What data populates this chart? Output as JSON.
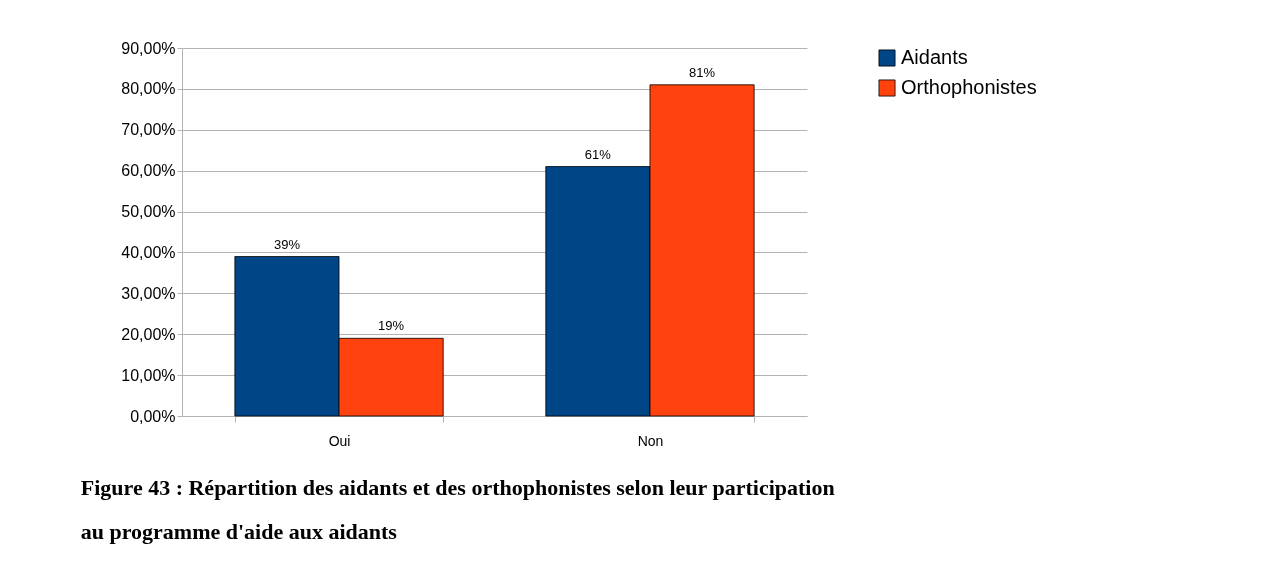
{
  "chart_data": {
    "type": "bar",
    "title": "Figure 43 : Répartition des aidants et des orthophonistes selon leur participation au programme d'aide aux aidants",
    "categories": [
      "Oui",
      "Non"
    ],
    "series": [
      {
        "name": "Aidants",
        "color": "#004586",
        "values": [
          39,
          61
        ],
        "value_labels": [
          "39%",
          "61%"
        ]
      },
      {
        "name": "Orthophonistes",
        "color": "#ff420e",
        "values": [
          19,
          81
        ],
        "value_labels": [
          "19%",
          "81%"
        ]
      }
    ],
    "ylim": [
      0,
      90
    ],
    "yticks": [
      {
        "value": 0,
        "label": "0,00%"
      },
      {
        "value": 10,
        "label": "10,00%"
      },
      {
        "value": 20,
        "label": "20,00%"
      },
      {
        "value": 30,
        "label": "30,00%"
      },
      {
        "value": 40,
        "label": "40,00%"
      },
      {
        "value": 50,
        "label": "50,00%"
      },
      {
        "value": 60,
        "label": "60,00%"
      },
      {
        "value": 70,
        "label": "70,00%"
      },
      {
        "value": 80,
        "label": "80,00%"
      },
      {
        "value": 90,
        "label": "90,00%"
      }
    ],
    "grid": "y",
    "legend": "right"
  }
}
